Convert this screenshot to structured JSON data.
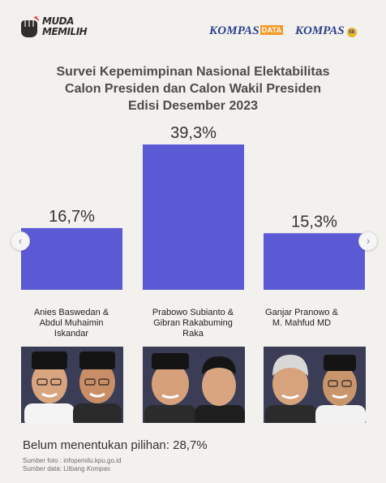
{
  "logos": {
    "muda_memilih": "MUDA MEMILIH",
    "kompas_data": "KOMPAS",
    "kompas_data_tag": "DATA",
    "kompas": "KOMPAS",
    "kompas_anniversary": "58"
  },
  "title": {
    "line1": "Survei Kepemimpinan Nasional Elektabilitas",
    "line2": "Calon Presiden dan Calon Wakil Presiden",
    "line3": "Edisi Desember 2023"
  },
  "colors": {
    "bar": "#5b59d4",
    "photo_bg": "#3a3d55",
    "background": "#f3f1ee"
  },
  "chart_data": {
    "type": "bar",
    "categories": [
      "Anies Baswedan & Abdul Muhaimin Iskandar",
      "Prabowo Subianto & Gibran Rakabuming Raka",
      "Ganjar Pranowo & M. Mahfud MD"
    ],
    "values": [
      16.7,
      39.3,
      15.3
    ],
    "value_labels": [
      "16,7%",
      "39,3%",
      "15,3%"
    ],
    "unit": "%",
    "ylim": [
      0,
      40
    ],
    "grid": false,
    "legend": "none"
  },
  "candidates": [
    {
      "line1": "Anies Baswedan &",
      "line2": "Abdul Muhaimin",
      "line3": "Iskandar"
    },
    {
      "line1": "Prabowo Subianto &",
      "line2": "Gibran Rakabuming",
      "line3": "Raka"
    },
    {
      "line1": "Ganjar Pranowo &",
      "line2": "M. Mahfud MD",
      "line3": ""
    }
  ],
  "footer": {
    "undecided": "Belum menentukan pilihan: 28,7%",
    "photo_source": "Sumber foto : infopemilu.kpu.go.id",
    "data_source_prefix": "Sumber data: Litbang ",
    "data_source_italic": "Kompas"
  },
  "icons": {
    "prev": "chevron-left-icon",
    "next": "chevron-right-icon"
  }
}
